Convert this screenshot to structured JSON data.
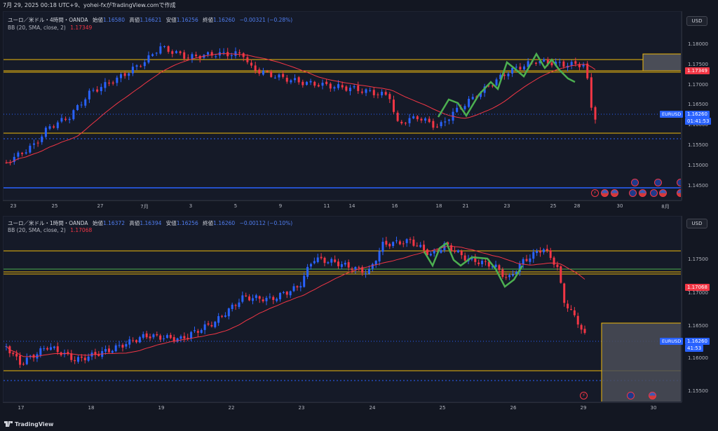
{
  "header": {
    "text": "7月 29, 2025 00:18 UTC+9、yohei-fxがTradingView.comで作成"
  },
  "footer": {
    "brand": "TradingView"
  },
  "top_chart": {
    "legend_title": "ユーロ／米ドル・4時間・OANDA",
    "o_label": "始値",
    "o_value": "1.16580",
    "h_label": "高値",
    "h_value": "1.16621",
    "l_label": "安値",
    "l_value": "1.16256",
    "c_label": "終値",
    "c_value": "1.16260",
    "change": "−0.00321 (−0.28%)",
    "bb_label": "BB (20, SMA, close, 2)",
    "bb_value": "1.17349",
    "currency_button": "USD",
    "price_ticks": [
      "1.18000",
      "1.17500",
      "1.17000",
      "1.16500",
      "1.16000",
      "1.15500",
      "1.15000",
      "1.14500"
    ],
    "bb_tag": "1.17349",
    "symbol": "EURUSD",
    "last_price": "1.16260",
    "countdown": "01:41:53",
    "time_ticks": [
      "23",
      "25",
      "27",
      "7月",
      "3",
      "5",
      "9",
      "11",
      "14",
      "16",
      "18",
      "21",
      "23",
      "25",
      "28",
      "30",
      "8月"
    ]
  },
  "bottom_chart": {
    "legend_title": "ユーロ／米ドル・1時間・OANDA",
    "o_label": "始値",
    "o_value": "1.16372",
    "h_label": "高値",
    "h_value": "1.16394",
    "l_label": "安値",
    "l_value": "1.16256",
    "c_label": "終値",
    "c_value": "1.16260",
    "change": "−0.00112 (−0.10%)",
    "bb_label": "BB (20, SMA, close, 2)",
    "bb_value": "1.17068",
    "currency_button": "USD",
    "price_ticks": [
      "1.17500",
      "1.17000",
      "1.16500",
      "1.16000",
      "1.15500"
    ],
    "bb_tag": "1.17068",
    "symbol": "EURUSD",
    "last_price": "1.16260",
    "countdown": "41:53",
    "time_ticks": [
      "17",
      "18",
      "19",
      "22",
      "23",
      "24",
      "25",
      "26",
      "29",
      "30"
    ]
  },
  "colors": {
    "bull": "#2962ff",
    "bear": "#f23645",
    "bb_basis": "#f23645",
    "zone_line": "#f0b90b",
    "bg": "#131722"
  }
}
